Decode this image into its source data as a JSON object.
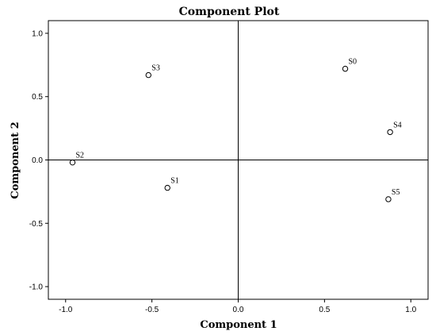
{
  "chart_data": {
    "type": "scatter",
    "title": "Component Plot",
    "xlabel": "Component 1",
    "ylabel": "Component 2",
    "xlim": [
      -1.1,
      1.1
    ],
    "ylim": [
      -1.1,
      1.1
    ],
    "xticks": [
      -1.0,
      -0.5,
      0.0,
      0.5,
      1.0
    ],
    "yticks": [
      -1.0,
      -0.5,
      0.0,
      0.5,
      1.0
    ],
    "xtick_labels": [
      "-1.0",
      "-0.5",
      "0.0",
      "0.5",
      "1.0"
    ],
    "ytick_labels": [
      "-1.0",
      "-0.5",
      "0.0",
      "0.5",
      "1.0"
    ],
    "reference_lines": {
      "x": 0,
      "y": 0
    },
    "grid": false,
    "points": [
      {
        "label": "S0",
        "x": 0.62,
        "y": 0.72
      },
      {
        "label": "S1",
        "x": -0.41,
        "y": -0.22
      },
      {
        "label": "S2",
        "x": -0.96,
        "y": -0.02
      },
      {
        "label": "S3",
        "x": -0.52,
        "y": 0.67
      },
      {
        "label": "S4",
        "x": 0.88,
        "y": 0.22
      },
      {
        "label": "S5",
        "x": 0.87,
        "y": -0.31
      }
    ]
  }
}
